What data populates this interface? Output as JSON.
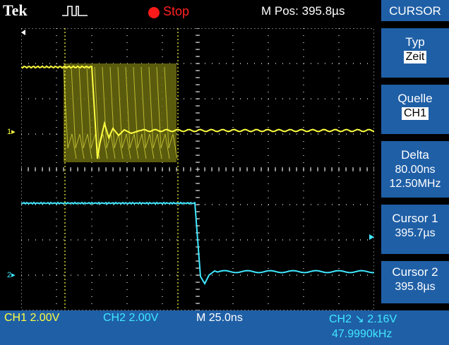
{
  "topbar": {
    "brand": "Tek",
    "trigger_icon": "trigger-pulse-icon",
    "status": "Stop",
    "status_color": "#ff2020",
    "m_pos": "M Pos: 395.8µs"
  },
  "menu": {
    "title": "CURSOR",
    "typ": {
      "label": "Typ",
      "value": "Zeit"
    },
    "quelle": {
      "label": "Quelle",
      "value": "CH1"
    },
    "delta": {
      "label": "Delta",
      "time": "80.00ns",
      "freq": "12.50MHz"
    },
    "cursor1": {
      "label": "Cursor 1",
      "value": "395.7µs"
    },
    "cursor2": {
      "label": "Cursor 2",
      "value": "395.8µs"
    }
  },
  "bottombar": {
    "ch1": "CH1  2.00V",
    "ch2": "CH2  2.00V",
    "timebase": "M 25.0ns",
    "trigger": "CH2 ↘ 2.16V",
    "frequency": "47.9990kHz"
  },
  "markers": {
    "ch1": "1",
    "ch2": "2"
  },
  "colors": {
    "ch1": "#ffff40",
    "ch2": "#40e8ff",
    "menu_bg": "#1f5fa6"
  }
}
